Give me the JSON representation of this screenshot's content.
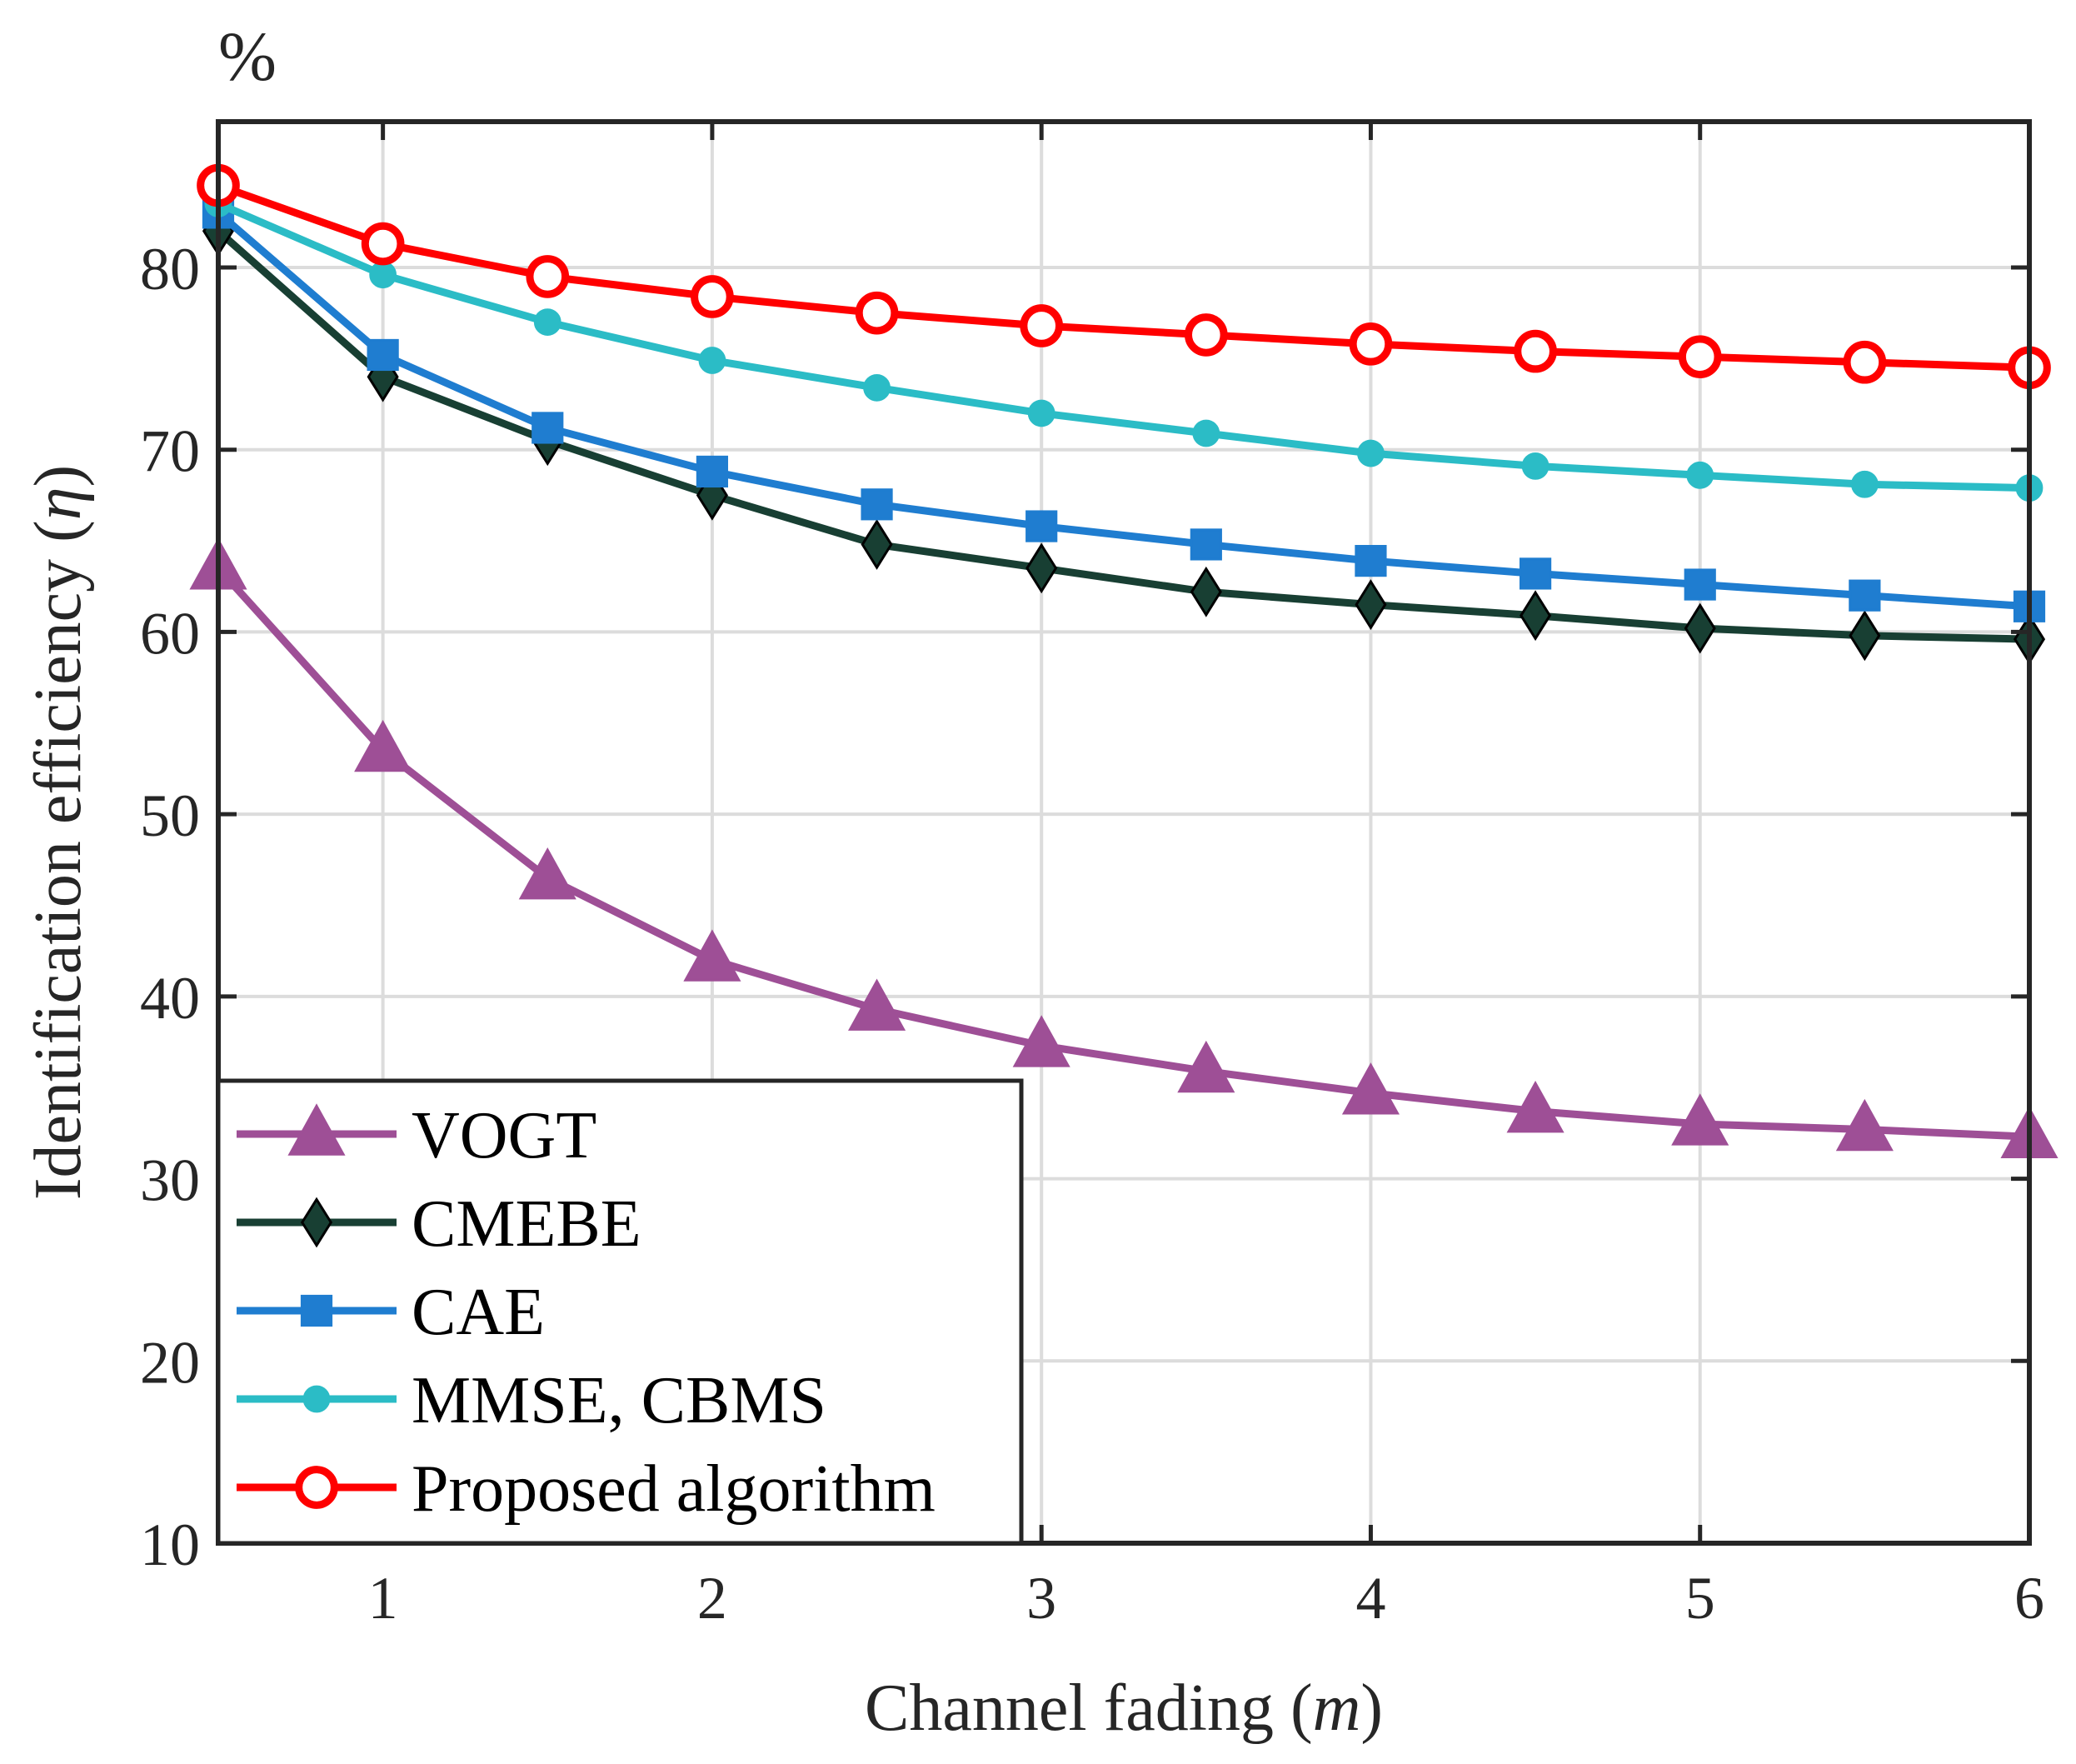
{
  "chart_data": {
    "type": "line",
    "title": "",
    "unit_label": "%",
    "xlabel": {
      "prefix": "Channel fading (",
      "var": "m",
      "suffix": ")"
    },
    "ylabel": {
      "prefix": "Identification efficiency (",
      "var": "η",
      "suffix": ")"
    },
    "xlim": [
      0.5,
      6
    ],
    "ylim": [
      10,
      88
    ],
    "xticks": [
      1,
      2,
      3,
      4,
      5,
      6
    ],
    "yticks": [
      10,
      20,
      30,
      40,
      50,
      60,
      70,
      80
    ],
    "grid": true,
    "legend_position": "bottom-left",
    "x": [
      0.5,
      1,
      1.5,
      2,
      2.5,
      3,
      3.5,
      4,
      4.5,
      5,
      5.5,
      6
    ],
    "series": [
      {
        "name": "VOGT",
        "color": "#9e4f96",
        "marker": "triangle",
        "values": [
          63.5,
          53.5,
          46.5,
          42.0,
          39.3,
          37.3,
          35.9,
          34.7,
          33.7,
          33.0,
          32.7,
          32.3
        ]
      },
      {
        "name": "CMEBE",
        "color": "#183f33",
        "marker": "diamond",
        "values": [
          82.0,
          74.0,
          70.5,
          67.5,
          64.8,
          63.5,
          62.2,
          61.5,
          60.9,
          60.2,
          59.8,
          59.6
        ]
      },
      {
        "name": "CAE",
        "color": "#1f7dd0",
        "marker": "square",
        "values": [
          83.0,
          75.2,
          71.2,
          68.8,
          67.0,
          65.8,
          64.8,
          63.9,
          63.2,
          62.6,
          62.0,
          61.4
        ]
      },
      {
        "name": "MMSE, CBMS",
        "color": "#2bbcc6",
        "marker": "circle-filled",
        "values": [
          83.5,
          79.6,
          77.0,
          74.9,
          73.4,
          72.0,
          70.9,
          69.8,
          69.1,
          68.6,
          68.1,
          67.9
        ]
      },
      {
        "name": "Proposed algorithm",
        "color": "#ff0000",
        "marker": "circle-open",
        "values": [
          84.5,
          81.3,
          79.5,
          78.4,
          77.5,
          76.8,
          76.3,
          75.8,
          75.4,
          75.1,
          74.8,
          74.5
        ]
      }
    ]
  }
}
